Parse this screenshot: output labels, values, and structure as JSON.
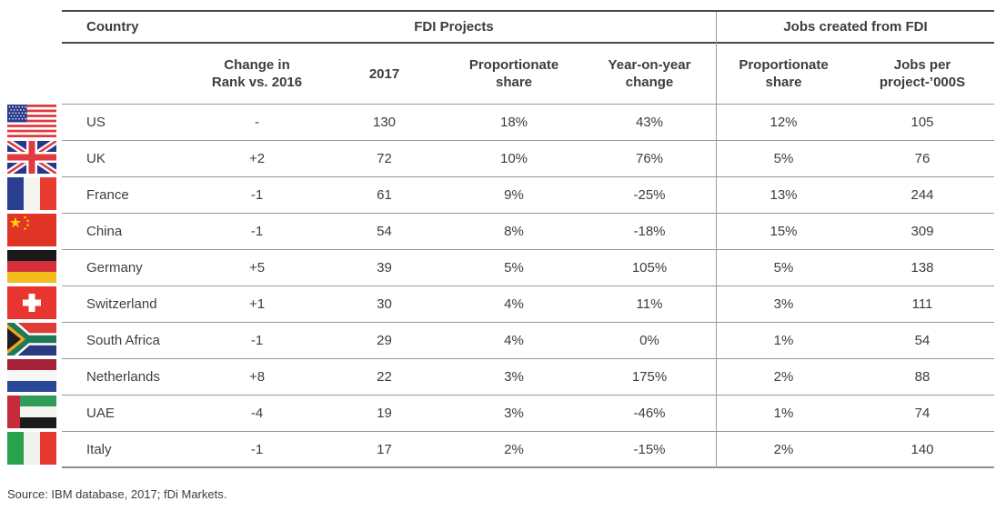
{
  "table": {
    "group_headers": {
      "country": "Country",
      "fdi_projects": "FDI Projects",
      "jobs_created": "Jobs created from FDI"
    },
    "column_headers": [
      {
        "line1": "Change in",
        "line2": "Rank vs. 2016"
      },
      {
        "line1": "2017",
        "line2": ""
      },
      {
        "line1": "Proportionate",
        "line2": "share"
      },
      {
        "line1": "Year-on-year",
        "line2": "change"
      },
      {
        "line1": "Proportionate",
        "line2": "share"
      },
      {
        "line1": "Jobs per",
        "line2": "project-’000S"
      }
    ],
    "rows": [
      {
        "flag": "us",
        "country": "US",
        "change_in_rank": "-",
        "projects_2017": "130",
        "proportionate_share": "18%",
        "yoy_change": "43%",
        "jobs_proportionate_share": "12%",
        "jobs_per_project": "105"
      },
      {
        "flag": "uk",
        "country": "UK",
        "change_in_rank": "+2",
        "projects_2017": "72",
        "proportionate_share": "10%",
        "yoy_change": "76%",
        "jobs_proportionate_share": "5%",
        "jobs_per_project": "76"
      },
      {
        "flag": "france",
        "country": "France",
        "change_in_rank": "-1",
        "projects_2017": "61",
        "proportionate_share": "9%",
        "yoy_change": "-25%",
        "jobs_proportionate_share": "13%",
        "jobs_per_project": "244"
      },
      {
        "flag": "china",
        "country": "China",
        "change_in_rank": "-1",
        "projects_2017": "54",
        "proportionate_share": "8%",
        "yoy_change": "-18%",
        "jobs_proportionate_share": "15%",
        "jobs_per_project": "309"
      },
      {
        "flag": "germany",
        "country": "Germany",
        "change_in_rank": "+5",
        "projects_2017": "39",
        "proportionate_share": "5%",
        "yoy_change": "105%",
        "jobs_proportionate_share": "5%",
        "jobs_per_project": "138"
      },
      {
        "flag": "switzerland",
        "country": "Switzerland",
        "change_in_rank": "+1",
        "projects_2017": "30",
        "proportionate_share": "4%",
        "yoy_change": "11%",
        "jobs_proportionate_share": "3%",
        "jobs_per_project": "111"
      },
      {
        "flag": "south-africa",
        "country": "South Africa",
        "change_in_rank": "-1",
        "projects_2017": "29",
        "proportionate_share": "4%",
        "yoy_change": "0%",
        "jobs_proportionate_share": "1%",
        "jobs_per_project": "54"
      },
      {
        "flag": "netherlands",
        "country": "Netherlands",
        "change_in_rank": "+8",
        "projects_2017": "22",
        "proportionate_share": "3%",
        "yoy_change": "175%",
        "jobs_proportionate_share": "2%",
        "jobs_per_project": "88"
      },
      {
        "flag": "uae",
        "country": "UAE",
        "change_in_rank": "-4",
        "projects_2017": "19",
        "proportionate_share": "3%",
        "yoy_change": "-46%",
        "jobs_proportionate_share": "1%",
        "jobs_per_project": "74"
      },
      {
        "flag": "italy",
        "country": "Italy",
        "change_in_rank": "-1",
        "projects_2017": "17",
        "proportionate_share": "2%",
        "yoy_change": "-15%",
        "jobs_proportionate_share": "2%",
        "jobs_per_project": "140"
      }
    ]
  },
  "source": "Source: IBM database, 2017; fDi Markets.",
  "colors": {
    "rule_dark": "#474747",
    "rule_gray": "#979797",
    "text": "#3d3d3d"
  }
}
